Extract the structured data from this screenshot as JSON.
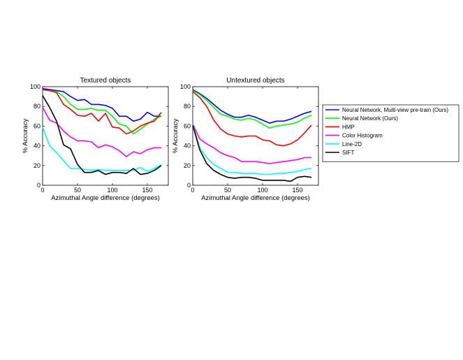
{
  "chart_data": [
    {
      "type": "line",
      "title": "Textured objects",
      "xlabel": "Azimuthal Angle difference (degrees)",
      "ylabel": "% Accuracy",
      "xlim": [
        0,
        180
      ],
      "ylim": [
        0,
        100
      ],
      "xticks": [
        0,
        50,
        100,
        150
      ],
      "yticks": [
        0,
        20,
        40,
        60,
        80,
        100
      ],
      "grid": false,
      "x": [
        0,
        10,
        20,
        30,
        40,
        50,
        60,
        70,
        80,
        90,
        100,
        110,
        120,
        130,
        140,
        150,
        160,
        170
      ],
      "series": [
        {
          "name": "Neural Network, Multi-view pre-train (Ours)",
          "color": "#0000ff",
          "values": [
            98,
            97,
            96,
            95,
            90,
            86,
            87,
            82,
            82,
            81,
            78,
            70,
            70,
            65,
            67,
            74,
            70,
            70
          ]
        },
        {
          "name": "Neural Network (Ours)",
          "color": "#00ff00",
          "values": [
            97,
            96,
            95,
            90,
            82,
            77,
            77,
            78,
            76,
            76,
            70,
            62,
            60,
            52,
            57,
            62,
            67,
            70
          ]
        },
        {
          "name": "HMP",
          "color": "#ff0000",
          "values": [
            97,
            96,
            94,
            82,
            77,
            71,
            70,
            73,
            65,
            73,
            59,
            58,
            52,
            55,
            60,
            63,
            65,
            74
          ]
        },
        {
          "name": "Color Histogram",
          "color": "#ff00ff",
          "values": [
            79,
            66,
            63,
            55,
            49,
            45,
            45,
            44,
            38,
            41,
            39,
            35,
            29,
            34,
            32,
            36,
            38,
            38
          ]
        },
        {
          "name": "Line-2D",
          "color": "#00ffff",
          "values": [
            59,
            40,
            33,
            25,
            17,
            17,
            16,
            15,
            16,
            15,
            15,
            15,
            15,
            15,
            18,
            14,
            17,
            21
          ]
        },
        {
          "name": "SIFT",
          "color": "#000000",
          "values": [
            91,
            79,
            65,
            41,
            37,
            21,
            13,
            13,
            15,
            11,
            13,
            13,
            12,
            17,
            11,
            12,
            15,
            20
          ]
        }
      ]
    },
    {
      "type": "line",
      "title": "Untextured objects",
      "xlabel": "Azimuthal Angle difference (degrees)",
      "ylabel": "% Accuracy",
      "xlim": [
        0,
        180
      ],
      "ylim": [
        0,
        100
      ],
      "xticks": [
        0,
        50,
        100,
        150
      ],
      "yticks": [
        0,
        20,
        40,
        60,
        80,
        100
      ],
      "grid": false,
      "legend_position": "right",
      "x": [
        0,
        10,
        20,
        30,
        40,
        50,
        60,
        70,
        80,
        90,
        100,
        110,
        120,
        130,
        140,
        150,
        160,
        170
      ],
      "series": [
        {
          "name": "Neural Network, Multi-view pre-train (Ours)",
          "color": "#0000ff",
          "values": [
            97,
            93,
            88,
            82,
            76,
            72,
            69,
            69,
            71,
            69,
            66,
            63,
            65,
            65,
            67,
            70,
            73,
            75
          ]
        },
        {
          "name": "Neural Network (Ours)",
          "color": "#00ff00",
          "values": [
            96,
            92,
            86,
            79,
            72,
            70,
            67,
            66,
            68,
            66,
            62,
            58,
            60,
            61,
            62,
            64,
            68,
            71
          ]
        },
        {
          "name": "HMP",
          "color": "#ff0000",
          "values": [
            95,
            89,
            80,
            66,
            57,
            52,
            50,
            49,
            50,
            50,
            46,
            45,
            41,
            40,
            42,
            46,
            53,
            61
          ]
        },
        {
          "name": "Color Histogram",
          "color": "#ff00ff",
          "values": [
            62,
            47,
            42,
            38,
            33,
            30,
            28,
            24,
            24,
            24,
            23,
            22,
            23,
            24,
            25,
            26,
            28,
            28
          ]
        },
        {
          "name": "Line-2D",
          "color": "#00ffff",
          "values": [
            62,
            38,
            28,
            21,
            17,
            13,
            13,
            12,
            12,
            12,
            11,
            11,
            12,
            12,
            13,
            14,
            16,
            17
          ]
        },
        {
          "name": "SIFT",
          "color": "#000000",
          "values": [
            61,
            36,
            22,
            15,
            11,
            8,
            7,
            8,
            8,
            7,
            5,
            5,
            5,
            5,
            4,
            8,
            9,
            8
          ]
        }
      ]
    }
  ]
}
